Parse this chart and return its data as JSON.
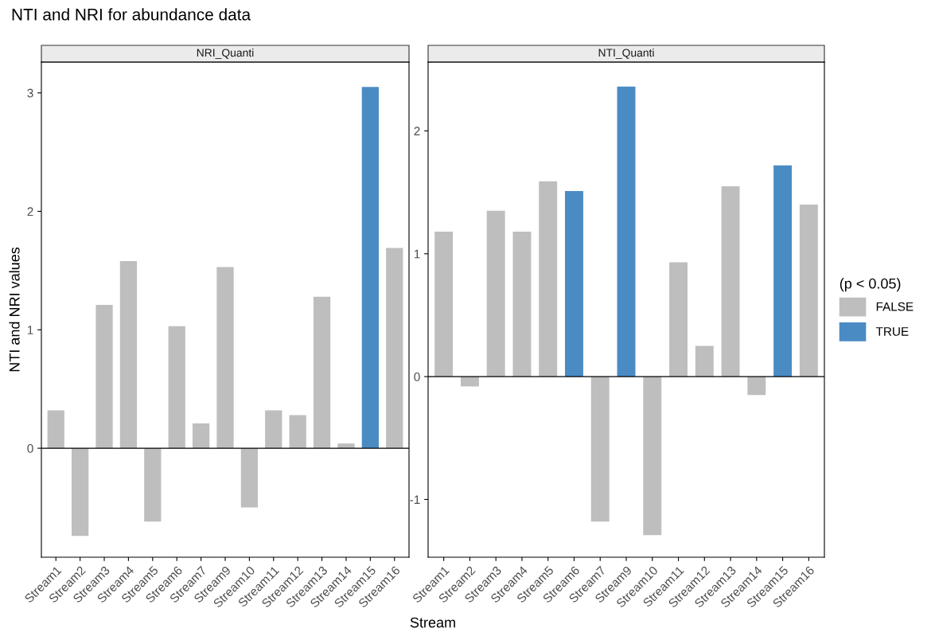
{
  "chart_data": [
    {
      "type": "bar",
      "title": "NTI and NRI for abundance data",
      "subtitle": "NRI_Quanti",
      "xlabel": "Stream",
      "ylabel": "NTI and NRI values",
      "categories": [
        "Stream1",
        "Stream2",
        "Stream3",
        "Stream4",
        "Stream5",
        "Stream6",
        "Stream7",
        "Stream9",
        "Stream10",
        "Stream11",
        "Stream12",
        "Stream13",
        "Stream14",
        "Stream15",
        "Stream16"
      ],
      "series": [
        {
          "name": "FALSE",
          "color": "#bebebe",
          "values": [
            0.32,
            -0.74,
            1.21,
            1.58,
            -0.62,
            1.03,
            0.21,
            1.53,
            -0.5,
            0.32,
            0.28,
            1.28,
            0.04,
            null,
            1.69
          ]
        },
        {
          "name": "TRUE",
          "color": "#4a8bc4",
          "values": [
            null,
            null,
            null,
            null,
            null,
            null,
            null,
            null,
            null,
            null,
            null,
            null,
            null,
            3.05,
            null
          ]
        }
      ],
      "ylim": [
        -0.92,
        3.26
      ],
      "yticks": [
        0,
        1,
        2,
        3
      ],
      "grid": false,
      "legend": "right",
      "ref_lines": [
        {
          "axis": "y",
          "value": 0,
          "color": "#000000"
        }
      ]
    },
    {
      "type": "bar",
      "subtitle": "NTI_Quanti",
      "legend_title": "(p < 0.05)",
      "legend": "right",
      "categories": [
        "Stream1",
        "Stream2",
        "Stream3",
        "Stream4",
        "Stream5",
        "Stream6",
        "Stream7",
        "Stream9",
        "Stream10",
        "Stream11",
        "Stream12",
        "Stream13",
        "Stream14",
        "Stream15",
        "Stream16"
      ],
      "series": [
        {
          "name": "FALSE",
          "color": "#bebebe",
          "values": [
            1.18,
            -0.08,
            1.35,
            1.18,
            1.59,
            null,
            -1.18,
            null,
            -1.29,
            0.93,
            0.25,
            1.55,
            -0.15,
            null,
            1.4
          ]
        },
        {
          "name": "TRUE",
          "color": "#4a8bc4",
          "values": [
            null,
            null,
            null,
            null,
            null,
            1.51,
            null,
            2.36,
            null,
            null,
            null,
            null,
            null,
            1.72,
            null
          ]
        }
      ],
      "ylim": [
        -1.47,
        2.56
      ],
      "yticks": [
        -1,
        0,
        1,
        2
      ],
      "grid": false,
      "ref_lines": [
        {
          "axis": "y",
          "value": 0,
          "color": "#000000"
        }
      ]
    }
  ]
}
